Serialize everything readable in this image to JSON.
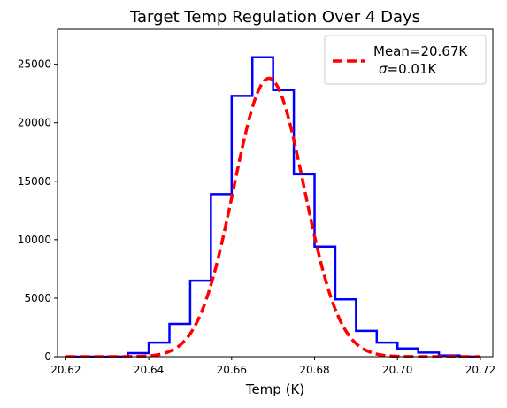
{
  "chart_data": {
    "type": "bar",
    "title": "Target Temp Regulation Over 4 Days",
    "xlabel": "Temp (K)",
    "ylabel": "",
    "xlim": [
      20.618,
      20.723
    ],
    "ylim": [
      0,
      28000
    ],
    "xticks": [
      "20.62",
      "20.64",
      "20.66",
      "20.68",
      "20.70",
      "20.72"
    ],
    "xtick_values": [
      20.62,
      20.64,
      20.66,
      20.68,
      20.7,
      20.72
    ],
    "yticks": [
      "0",
      "5000",
      "10000",
      "15000",
      "20000",
      "25000"
    ],
    "ytick_values": [
      0,
      5000,
      10000,
      15000,
      20000,
      25000
    ],
    "grid": false,
    "legend_position": "top-right",
    "series": [
      {
        "kind": "histogram-step",
        "color": "#0000ff",
        "bin_edges": [
          20.62,
          20.625,
          20.63,
          20.635,
          20.64,
          20.645,
          20.65,
          20.655,
          20.66,
          20.665,
          20.67,
          20.675,
          20.68,
          20.685,
          20.69,
          20.695,
          20.7,
          20.705,
          20.71,
          20.715,
          20.72
        ],
        "counts": [
          0,
          0,
          0,
          300,
          1200,
          2800,
          6500,
          13900,
          22300,
          25600,
          22800,
          15600,
          9400,
          4900,
          2200,
          1200,
          700,
          350,
          100,
          0
        ]
      },
      {
        "kind": "gaussian-fit",
        "name": "Mean=20.67K\nσ=0.01K",
        "color": "#ff0000",
        "linestyle": "dashed",
        "mean": 20.669,
        "sigma": 0.0085,
        "amplitude": 23800,
        "x_range": [
          20.62,
          20.72
        ]
      }
    ],
    "legend": {
      "line1": "Mean=20.67K",
      "line2_symbol": "σ",
      "line2_rest": "=0.01K"
    }
  }
}
